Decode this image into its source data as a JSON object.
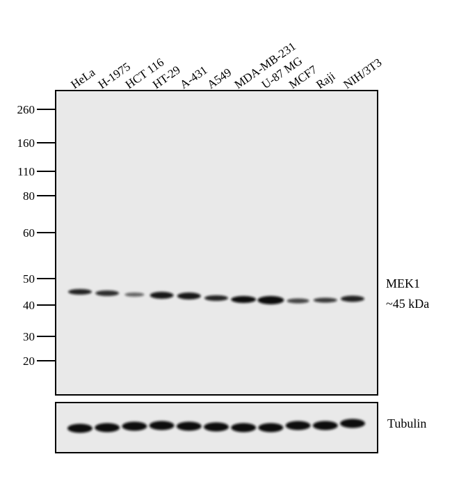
{
  "lanes": [
    "HeLa",
    "H-1975",
    "HCT 116",
    "HT-29",
    "A-431",
    "A549",
    "MDA-MB-231",
    "U-87 MG",
    "MCF7",
    "Raji",
    "NIH/3T3"
  ],
  "markers": [
    "260",
    "160",
    "110",
    "80",
    "60",
    "50",
    "40",
    "30",
    "20"
  ],
  "main_band": {
    "name": "MEK1",
    "size": "~45 kDa"
  },
  "loading_control": "Tubulin"
}
